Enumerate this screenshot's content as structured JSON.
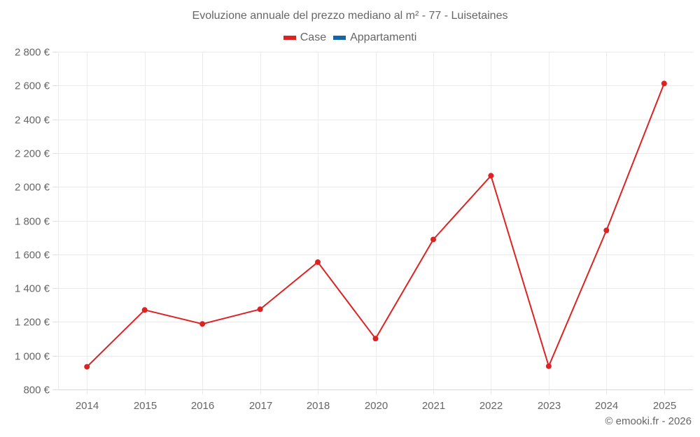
{
  "chart_data": {
    "type": "line",
    "title": "Evoluzione annuale del prezzo mediano al m² - 77 - Luisetaines",
    "xlabel": "",
    "ylabel": "",
    "categories": [
      "2014",
      "2015",
      "2016",
      "2017",
      "2018",
      "2020",
      "2021",
      "2022",
      "2023",
      "2024",
      "2025"
    ],
    "series": [
      {
        "name": "Case",
        "color": "#dd2222",
        "values": [
          934,
          1271,
          1188,
          1275,
          1554,
          1101,
          1688,
          2066,
          938,
          1742,
          2612
        ]
      },
      {
        "name": "Appartamenti",
        "color": "#1565a8",
        "values": []
      }
    ],
    "ylim": [
      800,
      2800
    ],
    "yticks": [
      800,
      1000,
      1200,
      1400,
      1600,
      1800,
      2000,
      2200,
      2400,
      2600,
      2800
    ],
    "ytick_labels": [
      "800 €",
      "1 000 €",
      "1 200 €",
      "1 400 €",
      "1 600 €",
      "1 800 €",
      "2 000 €",
      "2 200 €",
      "2 400 €",
      "2 600 €",
      "2 800 €"
    ],
    "grid": true,
    "legend_position": "top"
  },
  "legend": [
    {
      "label": "Case",
      "color": "#dd2222"
    },
    {
      "label": "Appartamenti",
      "color": "#1565a8"
    }
  ],
  "credit": "© emooki.fr - 2026"
}
